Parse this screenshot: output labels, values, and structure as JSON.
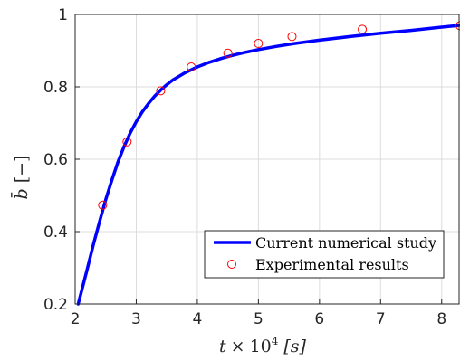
{
  "chart_data": {
    "type": "line",
    "title": "",
    "xlabel": "t × 10⁴ [s]",
    "ylabel": "b̄ [−]",
    "xlim": [
      2,
      8.3
    ],
    "ylim": [
      0.2,
      1.0
    ],
    "x_ticks": [
      "2",
      "3",
      "4",
      "5",
      "6",
      "7",
      "8"
    ],
    "y_ticks": [
      "0.2",
      "0.4",
      "0.6",
      "0.8",
      "1"
    ],
    "grid": true,
    "legend_position": "bottom-right",
    "series": [
      {
        "name": "Current numerical study",
        "style": "line",
        "color": "#0000ff",
        "x": [
          2.05,
          2.1,
          2.2,
          2.3,
          2.4,
          2.5,
          2.6,
          2.7,
          2.8,
          2.9,
          3.0,
          3.1,
          3.2,
          3.3,
          3.4,
          3.5,
          3.6,
          3.8,
          4.0,
          4.2,
          4.4,
          4.6,
          4.8,
          5.0,
          5.3,
          5.6,
          6.0,
          6.5,
          7.0,
          7.5,
          8.0,
          8.3
        ],
        "y": [
          0.2,
          0.232,
          0.298,
          0.365,
          0.428,
          0.488,
          0.542,
          0.592,
          0.635,
          0.672,
          0.704,
          0.731,
          0.754,
          0.774,
          0.791,
          0.806,
          0.819,
          0.839,
          0.855,
          0.868,
          0.879,
          0.888,
          0.896,
          0.903,
          0.912,
          0.92,
          0.929,
          0.939,
          0.948,
          0.956,
          0.965,
          0.97
        ]
      },
      {
        "name": "Experimental results",
        "style": "markers",
        "color": "#ff0000",
        "x": [
          2.45,
          2.85,
          3.4,
          3.9,
          4.5,
          5.0,
          5.55,
          6.7,
          8.3
        ],
        "y": [
          0.473,
          0.648,
          0.789,
          0.855,
          0.893,
          0.92,
          0.939,
          0.959,
          0.969
        ]
      }
    ]
  }
}
